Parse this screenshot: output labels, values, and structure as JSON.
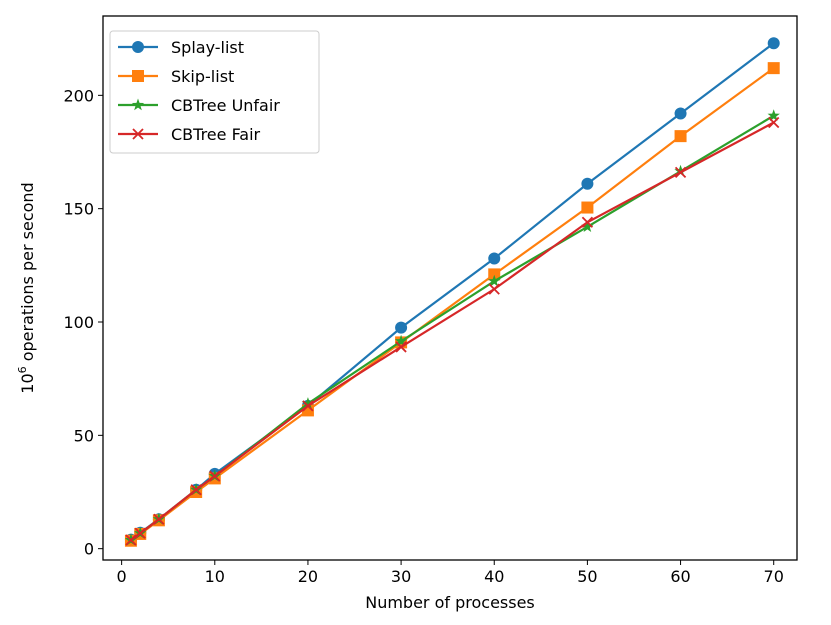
{
  "chart_data": {
    "type": "line",
    "xlabel": "Number of processes",
    "ylabel_base": "10",
    "ylabel_exp": "6",
    "ylabel_rest": " operations per second",
    "xlim": [
      -2,
      72.5
    ],
    "ylim": [
      -5,
      235
    ],
    "xticks": [
      0,
      10,
      20,
      30,
      40,
      50,
      60,
      70
    ],
    "yticks": [
      0,
      50,
      100,
      150,
      200
    ],
    "grid": false,
    "legend_position": "top-left",
    "x": [
      1,
      2,
      4,
      8,
      10,
      20,
      30,
      40,
      50,
      60,
      70
    ],
    "series": [
      {
        "name": "Splay-list",
        "color": "#1f77b4",
        "marker": "circle",
        "values": [
          4,
          7,
          13,
          26,
          33,
          63,
          97.5,
          128,
          161,
          192,
          223
        ]
      },
      {
        "name": "Skip-list",
        "color": "#ff7f0e",
        "marker": "square",
        "values": [
          3.5,
          6.5,
          12.5,
          25,
          31,
          61,
          91,
          121,
          150.5,
          182,
          212
        ]
      },
      {
        "name": "CBTree Unfair",
        "color": "#2ca02c",
        "marker": "star",
        "values": [
          3.8,
          6.8,
          13,
          26,
          32,
          64,
          91.5,
          118,
          142,
          166.5,
          191
        ]
      },
      {
        "name": "CBTree Fair",
        "color": "#d62728",
        "marker": "x",
        "values": [
          3.8,
          6.8,
          13,
          26,
          32,
          63,
          89,
          114.5,
          144,
          166,
          188
        ]
      }
    ]
  }
}
